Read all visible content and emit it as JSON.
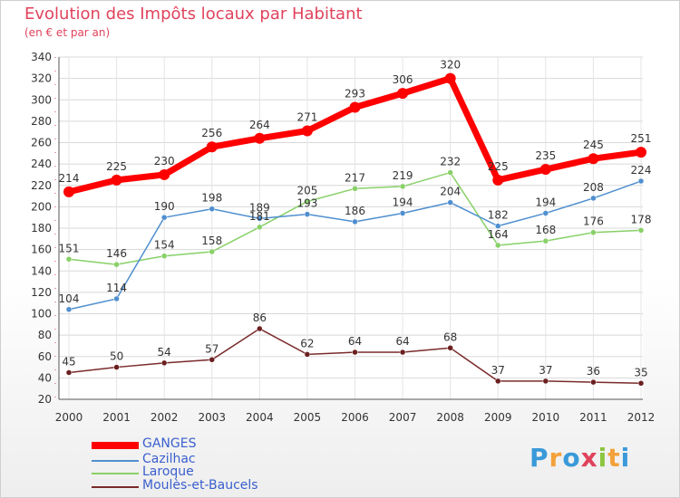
{
  "header": {
    "title": "Evolution des Impôts locaux par Habitant",
    "subtitle": "(en € et par an)"
  },
  "logo": {
    "letters": [
      "P",
      "r",
      "o",
      "x",
      "i",
      "t",
      "i"
    ]
  },
  "chart_data": {
    "type": "line",
    "title": "Evolution des Impôts locaux par Habitant",
    "subtitle": "(en € et par an)",
    "xlabel": "",
    "ylabel": "",
    "x": [
      "2000",
      "2001",
      "2002",
      "2003",
      "2004",
      "2005",
      "2006",
      "2007",
      "2008",
      "2009",
      "2010",
      "2011",
      "2012"
    ],
    "ylim": [
      20,
      340
    ],
    "yticks": [
      20,
      40,
      60,
      80,
      100,
      120,
      140,
      160,
      180,
      200,
      220,
      240,
      260,
      280,
      300,
      320,
      340
    ],
    "grid": true,
    "legend_position": "bottom-left",
    "series": [
      {
        "name": "GANGES",
        "color": "#ff0000",
        "values": [
          214,
          225,
          230,
          256,
          264,
          271,
          293,
          306,
          320,
          225,
          235,
          245,
          251
        ]
      },
      {
        "name": "Cazilhac",
        "color": "#4f8fcf",
        "values": [
          104,
          114,
          190,
          198,
          189,
          193,
          186,
          194,
          204,
          182,
          194,
          208,
          224
        ]
      },
      {
        "name": "Laroque",
        "color": "#88d068",
        "values": [
          151,
          146,
          154,
          158,
          181,
          205,
          217,
          219,
          232,
          164,
          168,
          176,
          178
        ]
      },
      {
        "name": "Moulès-et-Baucels",
        "color": "#7a2a2a",
        "values": [
          45,
          50,
          54,
          57,
          86,
          62,
          64,
          64,
          68,
          37,
          37,
          36,
          35
        ]
      }
    ]
  }
}
